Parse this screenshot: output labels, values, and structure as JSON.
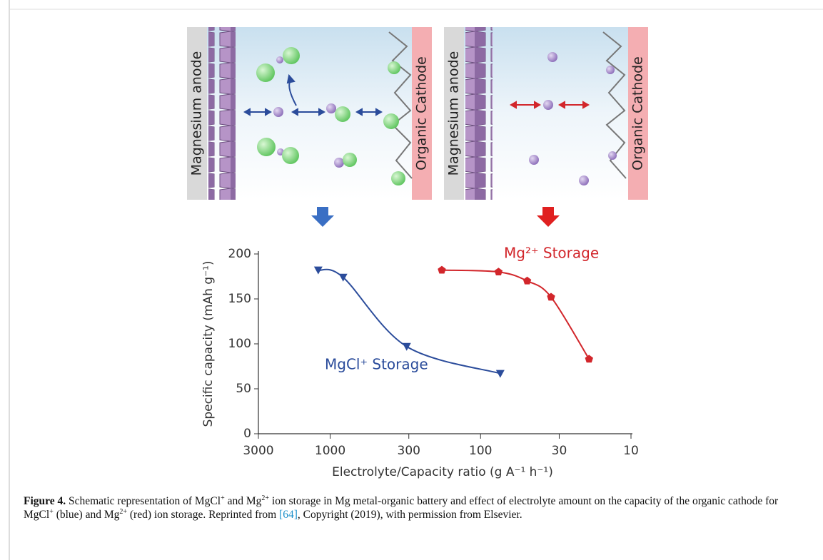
{
  "schematic": {
    "anode_left": "Magnesium anode",
    "cathode_left": "Organic Cathode",
    "anode_right": "Magnesium anode",
    "cathode_right": "Organic Cathode"
  },
  "chart_data": {
    "type": "scatter",
    "xlabel": "Electrolyte/Capacity ratio (g A⁻¹ h⁻¹)",
    "ylabel": "Specific capacity (mAh g⁻¹)",
    "xscale": "log",
    "xlim": [
      3000,
      10
    ],
    "xticks": [
      3000,
      1000,
      300,
      100,
      30,
      10
    ],
    "ylim": [
      0,
      200
    ],
    "yticks": [
      0,
      50,
      100,
      150,
      200
    ],
    "series": [
      {
        "name": "MgCl⁺ Storage",
        "color": "#2b4c9b",
        "marker": "triangle-down",
        "line": true,
        "x": [
          1200,
          820,
          310,
          74
        ],
        "values": [
          182,
          174,
          97,
          67
        ]
      },
      {
        "name": "Mg²⁺ Storage",
        "color": "#d2262b",
        "marker": "pentagon",
        "line": true,
        "x": [
          181,
          76,
          49,
          34,
          19
        ],
        "values": [
          182,
          180,
          170,
          152,
          83
        ]
      }
    ]
  },
  "caption": {
    "label": "Figure 4.",
    "text": [
      "Schematic representation of MgCl",
      "+",
      " and Mg",
      "2+",
      " ion storage in Mg metal-organic battery and effect of electrolyte amount on the capacity of the organic cathode for MgCl",
      "+",
      " (blue) and Mg",
      "2+",
      " (red) ion storage. Reprinted from ",
      "[64]",
      ", Copyright (2019), with permission from Elsevier."
    ]
  }
}
